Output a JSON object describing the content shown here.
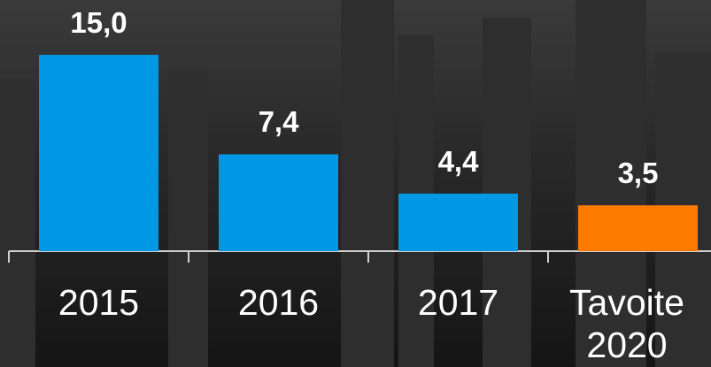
{
  "chart_data": {
    "type": "bar",
    "categories": [
      "2015",
      "2016",
      "2017",
      "Tavoite 2020"
    ],
    "values": [
      15.0,
      7.4,
      4.4,
      3.5
    ],
    "value_labels": [
      "15,0",
      "7,4",
      "4,4",
      "3,5"
    ],
    "colors": [
      "#0098e5",
      "#0098e5",
      "#0098e5",
      "#ff7b00"
    ]
  }
}
